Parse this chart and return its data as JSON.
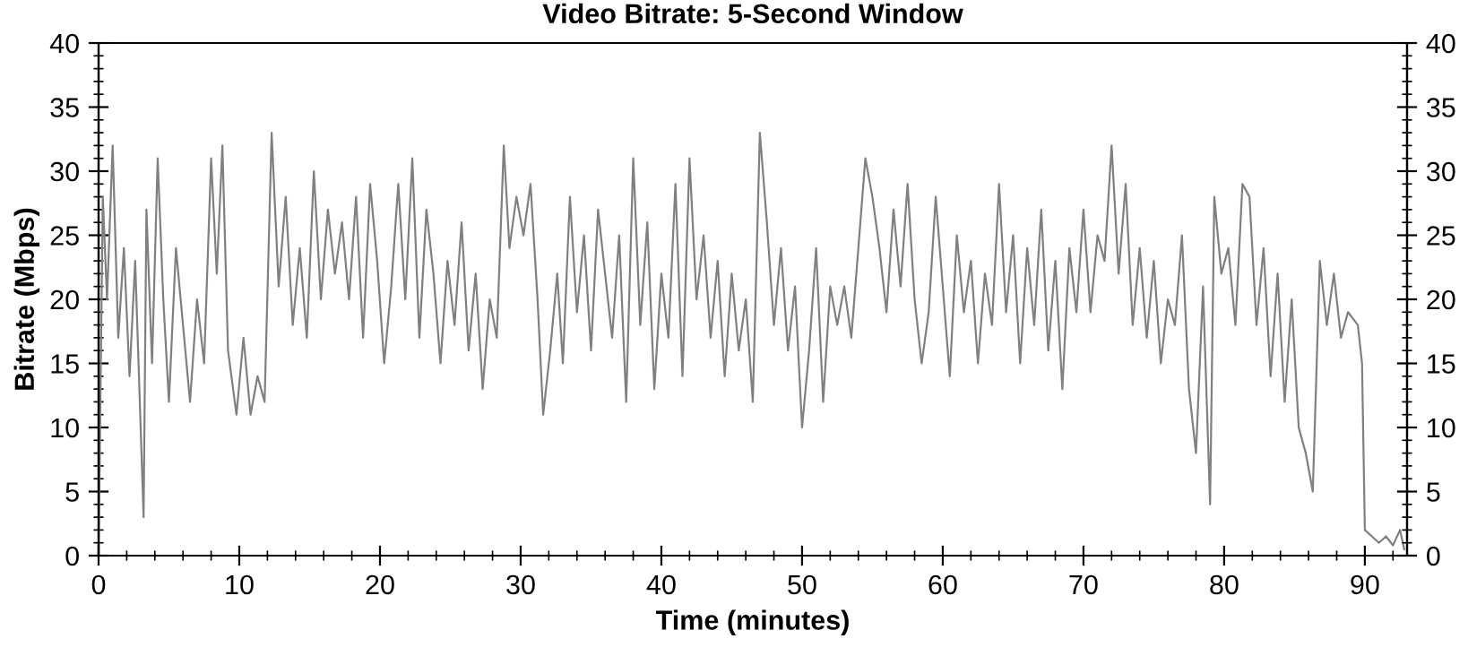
{
  "chart_data": {
    "type": "line",
    "title": "Video Bitrate: 5-Second Window",
    "xlabel": "Time (minutes)",
    "ylabel": "Bitrate (Mbps)",
    "xlim": [
      0,
      93
    ],
    "xticks": [
      0,
      10,
      20,
      30,
      40,
      50,
      60,
      70,
      80,
      90
    ],
    "ylim": [
      0,
      40
    ],
    "yticks": [
      0,
      5,
      10,
      15,
      20,
      25,
      30,
      35,
      40
    ],
    "y2lim": [
      0,
      40
    ],
    "y2ticks": [
      0,
      5,
      10,
      15,
      20,
      25,
      30,
      35,
      40
    ],
    "grid": false,
    "marker": "none",
    "line_style": "solid",
    "series": [
      {
        "color": "#808080",
        "x": [
          0,
          0.3,
          0.6,
          1,
          1.4,
          1.8,
          2.2,
          2.6,
          3.2,
          3.4,
          3.8,
          4.2,
          4.6,
          5,
          5.5,
          6,
          6.5,
          7,
          7.5,
          8,
          8.4,
          8.8,
          9.2,
          9.8,
          10.3,
          10.8,
          11.3,
          11.8,
          12.3,
          12.8,
          13.3,
          13.8,
          14.3,
          14.8,
          15.3,
          15.8,
          16.3,
          16.8,
          17.3,
          17.8,
          18.3,
          18.8,
          19.3,
          19.8,
          20.3,
          20.8,
          21.3,
          21.8,
          22.3,
          22.8,
          23.3,
          23.8,
          24.3,
          24.8,
          25.3,
          25.8,
          26.3,
          26.8,
          27.3,
          27.8,
          28.3,
          28.8,
          29.2,
          29.7,
          30.2,
          30.7,
          31.2,
          31.6,
          32.1,
          32.6,
          33,
          33.5,
          34,
          34.5,
          35,
          35.5,
          36,
          36.5,
          37,
          37.5,
          38,
          38.5,
          39,
          39.5,
          40,
          40.5,
          41,
          41.5,
          42,
          42.5,
          43,
          43.5,
          44,
          44.5,
          45,
          45.5,
          46,
          46.5,
          47,
          47.5,
          48,
          48.5,
          49,
          49.5,
          50,
          50.5,
          51,
          51.5,
          52,
          52.5,
          53,
          53.5,
          54,
          54.5,
          55,
          55.5,
          56,
          56.5,
          57,
          57.5,
          58,
          58.5,
          59,
          59.5,
          60,
          60.5,
          61,
          61.5,
          62,
          62.5,
          63,
          63.5,
          64,
          64.5,
          65,
          65.5,
          66,
          66.5,
          67,
          67.5,
          68,
          68.5,
          69,
          69.5,
          70,
          70.5,
          71,
          71.5,
          72,
          72.5,
          73,
          73.5,
          74,
          74.5,
          75,
          75.5,
          76,
          76.5,
          77,
          77.5,
          78,
          78.5,
          79,
          79.3,
          79.8,
          80.3,
          80.8,
          81.3,
          81.8,
          82.3,
          82.8,
          83.3,
          83.8,
          84.3,
          84.8,
          85.3,
          85.8,
          86.3,
          86.8,
          87.3,
          87.8,
          88.3,
          88.8,
          89.5,
          89.8,
          90,
          90.5,
          91,
          91.5,
          92,
          92.5,
          92.8
        ],
        "values": [
          0,
          28,
          20,
          32,
          17,
          24,
          14,
          23,
          3,
          27,
          15,
          31,
          20,
          12,
          24,
          18,
          12,
          20,
          15,
          31,
          22,
          32,
          16,
          11,
          17,
          11,
          14,
          12,
          33,
          21,
          28,
          18,
          24,
          17,
          30,
          20,
          27,
          22,
          26,
          20,
          28,
          17,
          29,
          23,
          15,
          21,
          29,
          20,
          31,
          17,
          27,
          22,
          15,
          23,
          18,
          26,
          16,
          22,
          13,
          20,
          17,
          32,
          24,
          28,
          25,
          29,
          20,
          11,
          16,
          22,
          15,
          28,
          19,
          25,
          16,
          27,
          22,
          17,
          25,
          12,
          31,
          18,
          26,
          13,
          22,
          17,
          29,
          14,
          31,
          20,
          25,
          17,
          23,
          14,
          22,
          16,
          20,
          12,
          33,
          26,
          18,
          24,
          16,
          21,
          10,
          16,
          24,
          12,
          21,
          18,
          21,
          17,
          24,
          31,
          28,
          24,
          19,
          27,
          21,
          29,
          20,
          15,
          19,
          28,
          21,
          14,
          25,
          19,
          23,
          15,
          22,
          18,
          29,
          19,
          25,
          15,
          24,
          18,
          27,
          16,
          23,
          13,
          24,
          19,
          27,
          19,
          25,
          23,
          32,
          22,
          29,
          18,
          24,
          17,
          23,
          15,
          20,
          18,
          25,
          13,
          8,
          21,
          4,
          28,
          22,
          24,
          18,
          29,
          28,
          18,
          24,
          14,
          22,
          12,
          20,
          10,
          8,
          5,
          23,
          18,
          22,
          17,
          19,
          18,
          15,
          2,
          1.5,
          1,
          1.5,
          0.8,
          2,
          0.5
        ]
      }
    ]
  }
}
